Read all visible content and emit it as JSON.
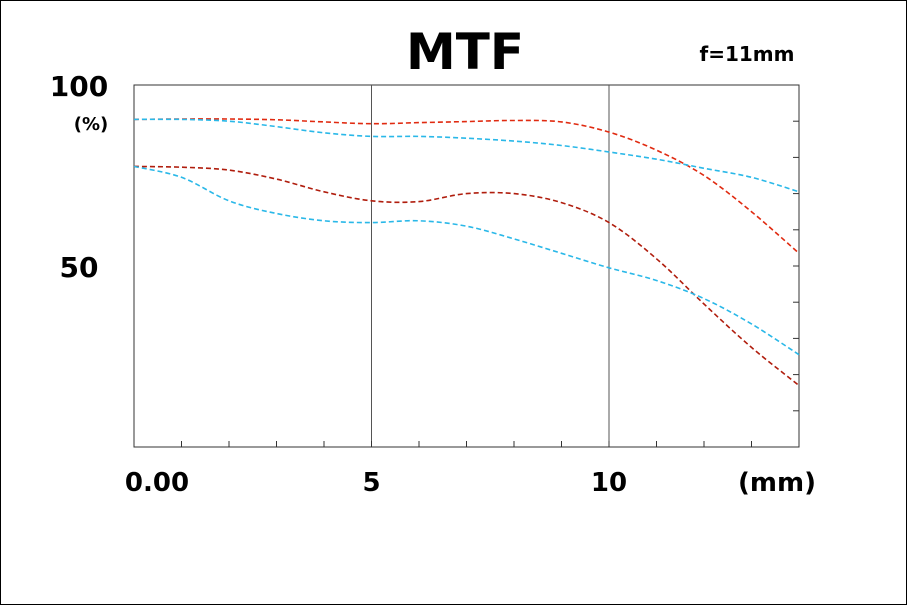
{
  "chart_data": {
    "type": "line",
    "title": "MTF",
    "subtitle": "f=11mm",
    "xlabel": "(mm)",
    "ylabel": "(%)",
    "xlim": [
      0,
      14
    ],
    "ylim": [
      0,
      100
    ],
    "y_tick_labels": [
      {
        "value": 100,
        "label": "100"
      },
      {
        "value": 50,
        "label": "50"
      }
    ],
    "x_tick_labels": [
      {
        "value": 0,
        "label": "0.00"
      },
      {
        "value": 5,
        "label": "5"
      },
      {
        "value": 10,
        "label": "10"
      }
    ],
    "vertical_gridlines": [
      5,
      10
    ],
    "series": [
      {
        "color": "#e02a10",
        "style": "dashed",
        "points": [
          [
            0,
            90.5
          ],
          [
            1,
            90.6
          ],
          [
            2,
            90.6
          ],
          [
            3,
            90.4
          ],
          [
            4,
            89.8
          ],
          [
            5,
            89.3
          ],
          [
            6,
            89.6
          ],
          [
            7,
            89.9
          ],
          [
            8,
            90.2
          ],
          [
            9,
            89.8
          ],
          [
            10,
            87.0
          ],
          [
            11,
            82.0
          ],
          [
            12,
            75.0
          ],
          [
            13,
            65.0
          ],
          [
            14,
            53.5
          ]
        ]
      },
      {
        "color": "#2ab8e8",
        "style": "dashed",
        "points": [
          [
            0,
            90.5
          ],
          [
            1,
            90.5
          ],
          [
            2,
            90.0
          ],
          [
            3,
            88.5
          ],
          [
            4,
            86.8
          ],
          [
            5,
            85.8
          ],
          [
            6,
            85.8
          ],
          [
            7,
            85.3
          ],
          [
            8,
            84.5
          ],
          [
            9,
            83.3
          ],
          [
            10,
            81.5
          ],
          [
            11,
            79.5
          ],
          [
            12,
            77.0
          ],
          [
            13,
            74.5
          ],
          [
            14,
            70.5
          ]
        ]
      },
      {
        "color": "#b01d0d",
        "style": "dashed",
        "points": [
          [
            0,
            77.5
          ],
          [
            1,
            77.3
          ],
          [
            2,
            76.5
          ],
          [
            3,
            74.0
          ],
          [
            4,
            70.5
          ],
          [
            5,
            68.0
          ],
          [
            6,
            67.8
          ],
          [
            7,
            70.0
          ],
          [
            8,
            70.0
          ],
          [
            9,
            67.5
          ],
          [
            10,
            62.0
          ],
          [
            11,
            52.0
          ],
          [
            12,
            39.5
          ],
          [
            13,
            27.5
          ],
          [
            14,
            17.0
          ]
        ]
      },
      {
        "color": "#2ab8e8",
        "style": "dashed",
        "points": [
          [
            0,
            77.5
          ],
          [
            1,
            74.5
          ],
          [
            2,
            68.0
          ],
          [
            3,
            64.5
          ],
          [
            4,
            62.5
          ],
          [
            5,
            62.0
          ],
          [
            6,
            62.5
          ],
          [
            7,
            61.0
          ],
          [
            8,
            57.5
          ],
          [
            9,
            53.5
          ],
          [
            10,
            49.5
          ],
          [
            11,
            46.0
          ],
          [
            12,
            41.0
          ],
          [
            13,
            34.0
          ],
          [
            14,
            25.5
          ]
        ]
      }
    ]
  }
}
